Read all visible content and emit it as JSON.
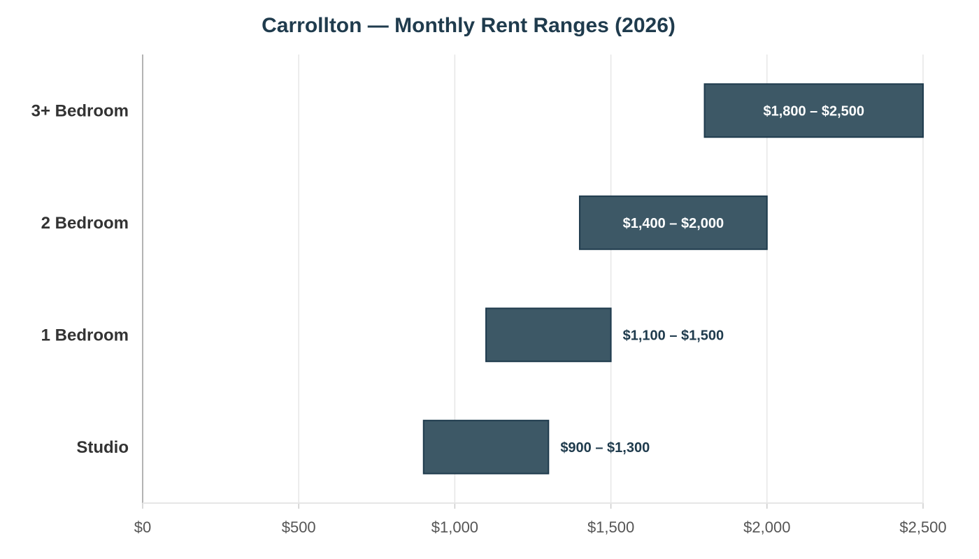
{
  "chart_data": {
    "type": "bar",
    "orientation": "horizontal-range",
    "title": "Carrollton — Monthly Rent Ranges (2026)",
    "xlabel": "",
    "ylabel": "",
    "xlim": [
      0,
      2500
    ],
    "x_ticks": [
      0,
      500,
      1000,
      1500,
      2000,
      2500
    ],
    "x_tick_labels": [
      "$0",
      "$500",
      "$1,000",
      "$1,500",
      "$2,000",
      "$2,500"
    ],
    "grid": "vertical",
    "legend": "none",
    "bar_color": "#3d5866",
    "bar_edge_color": "#1f3b4d",
    "label_inside_color": "#ffffff",
    "label_outside_color": "#1f3b4d",
    "categories": [
      "Studio",
      "1 Bedroom",
      "2 Bedroom",
      "3+ Bedroom"
    ],
    "ranges": [
      {
        "low": 900,
        "high": 1300,
        "label": "$900 – $1,300",
        "label_position": "outside"
      },
      {
        "low": 1100,
        "high": 1500,
        "label": "$1,100 – $1,500",
        "label_position": "outside"
      },
      {
        "low": 1400,
        "high": 2000,
        "label": "$1,400 – $2,000",
        "label_position": "inside"
      },
      {
        "low": 1800,
        "high": 2500,
        "label": "$1,800 – $2,500",
        "label_position": "inside"
      }
    ]
  }
}
